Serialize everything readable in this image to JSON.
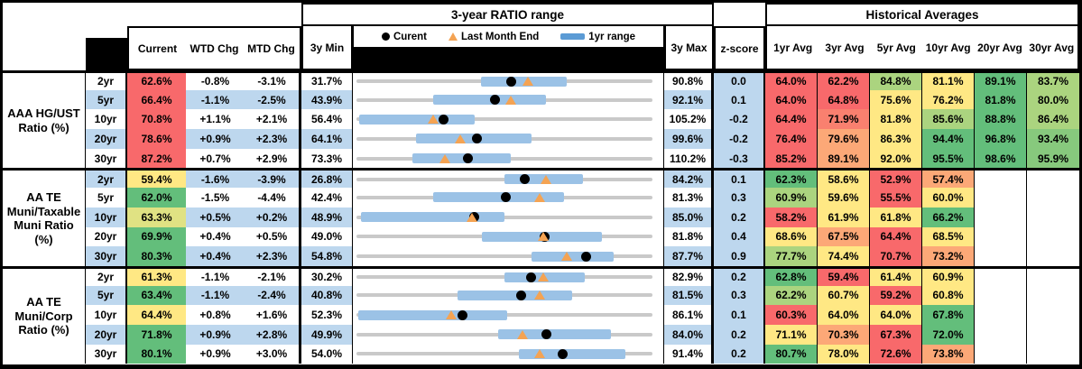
{
  "title": {
    "range": "3-year RATIO range",
    "hist": "Historical Averages"
  },
  "columns": {
    "current": "Current",
    "wtd": "WTD Chg",
    "mtd": "MTD Chg",
    "min": "3y Min",
    "max": "3y Max",
    "z": "z-score",
    "avgs": [
      "1yr Avg",
      "3yr Avg",
      "5yr Avg",
      "10yr Avg",
      "20yr Avg",
      "30yr Avg"
    ]
  },
  "legend": {
    "current": "Curent",
    "last_month": "Last Month End",
    "range": "1yr range"
  },
  "colors": {
    "band": "#BDD7EE",
    "bar": "#9BC2E6",
    "track": "#C9C9C9",
    "triangle": "#F4A353",
    "legend_bar": "#5B9BD5",
    "red": "#F8696B",
    "salmon": "#F9806F",
    "orange": "#FCA877",
    "yellow": "#FFE884",
    "yellowgreen": "#E0E283",
    "lightgreen": "#ABD47F",
    "midgreen": "#87C97D",
    "green": "#63BE7B"
  },
  "chart_data": {
    "type": "table",
    "note": "Each row shows a 3-year ratio range chart; bar/tri/dot are percent positions within [3y Min, 3y Max]; bar = 1yr range, tri = last month end, dot = current.",
    "groups": [
      {
        "label": "AAA HG/UST Ratio (%)",
        "rows": [
          {
            "tenor": "2yr",
            "current": "62.6%",
            "cur_c": "red",
            "wtd": "-0.8%",
            "mtd": "-3.1%",
            "min": "31.7%",
            "max": "90.8%",
            "z": "0.0",
            "bar": [
              42,
              71
            ],
            "tri": 58,
            "dot": 52.3,
            "avgs": [
              [
                "64.0%",
                "red"
              ],
              [
                "62.2%",
                "red"
              ],
              [
                "84.8%",
                "lightgreen"
              ],
              [
                "81.1%",
                "yellow"
              ],
              [
                "89.1%",
                "green"
              ],
              [
                "83.7%",
                "lightgreen"
              ]
            ]
          },
          {
            "tenor": "5yr",
            "current": "66.4%",
            "cur_c": "red",
            "wtd": "-1.1%",
            "mtd": "-2.5%",
            "min": "43.9%",
            "max": "92.1%",
            "z": "0.1",
            "bar": [
              26,
              64
            ],
            "tri": 52,
            "dot": 46.7,
            "avgs": [
              [
                "64.0%",
                "red"
              ],
              [
                "64.8%",
                "red"
              ],
              [
                "75.6%",
                "yellow"
              ],
              [
                "76.2%",
                "yellow"
              ],
              [
                "81.8%",
                "green"
              ],
              [
                "80.0%",
                "lightgreen"
              ]
            ]
          },
          {
            "tenor": "10yr",
            "current": "70.8%",
            "cur_c": "red",
            "wtd": "+1.1%",
            "mtd": "+2.1%",
            "min": "56.4%",
            "max": "105.2%",
            "z": "-0.2",
            "bar": [
              1,
              40
            ],
            "tri": 26,
            "dot": 29.5,
            "avgs": [
              [
                "64.4%",
                "red"
              ],
              [
                "71.9%",
                "salmon"
              ],
              [
                "81.8%",
                "yellow"
              ],
              [
                "85.6%",
                "lightgreen"
              ],
              [
                "88.8%",
                "green"
              ],
              [
                "86.4%",
                "lightgreen"
              ]
            ]
          },
          {
            "tenor": "20yr",
            "current": "78.6%",
            "cur_c": "red",
            "wtd": "+0.9%",
            "mtd": "+2.3%",
            "min": "64.1%",
            "max": "99.6%",
            "z": "-0.2",
            "bar": [
              20,
              59
            ],
            "tri": 35,
            "dot": 40.8,
            "avgs": [
              [
                "76.4%",
                "red"
              ],
              [
                "79.6%",
                "orange"
              ],
              [
                "86.3%",
                "yellow"
              ],
              [
                "94.4%",
                "green"
              ],
              [
                "96.8%",
                "green"
              ],
              [
                "93.4%",
                "midgreen"
              ]
            ]
          },
          {
            "tenor": "30yr",
            "current": "87.2%",
            "cur_c": "red",
            "wtd": "+0.7%",
            "mtd": "+2.9%",
            "min": "73.3%",
            "max": "110.2%",
            "z": "-0.3",
            "bar": [
              19,
              52
            ],
            "tri": 30,
            "dot": 37.7,
            "avgs": [
              [
                "85.2%",
                "red"
              ],
              [
                "89.1%",
                "orange"
              ],
              [
                "92.0%",
                "yellow"
              ],
              [
                "95.5%",
                "green"
              ],
              [
                "98.6%",
                "green"
              ],
              [
                "95.9%",
                "midgreen"
              ]
            ]
          }
        ]
      },
      {
        "label": "AA TE Muni/Taxable Muni Ratio (%)",
        "rows": [
          {
            "tenor": "2yr",
            "current": "59.4%",
            "cur_c": "yellow",
            "wtd": "-1.6%",
            "mtd": "-3.9%",
            "min": "26.8%",
            "max": "84.2%",
            "z": "0.1",
            "bar": [
              50,
              76.5
            ],
            "tri": 64,
            "dot": 56.8,
            "avgs": [
              [
                "62.3%",
                "green"
              ],
              [
                "58.6%",
                "yellow"
              ],
              [
                "52.9%",
                "red"
              ],
              [
                "57.4%",
                "orange"
              ],
              [
                "",
                ""
              ],
              [
                "",
                ""
              ]
            ]
          },
          {
            "tenor": "5yr",
            "current": "62.0%",
            "cur_c": "green",
            "wtd": "-1.5%",
            "mtd": "-4.4%",
            "min": "42.4%",
            "max": "81.3%",
            "z": "0.3",
            "bar": [
              26,
              70
            ],
            "tri": 62,
            "dot": 50.4,
            "avgs": [
              [
                "60.9%",
                "lightgreen"
              ],
              [
                "59.6%",
                "yellow"
              ],
              [
                "55.5%",
                "red"
              ],
              [
                "60.0%",
                "yellow"
              ],
              [
                "",
                ""
              ],
              [
                "",
                ""
              ]
            ]
          },
          {
            "tenor": "10yr",
            "current": "63.3%",
            "cur_c": "yellowgreen",
            "wtd": "+0.5%",
            "mtd": "+0.2%",
            "min": "48.9%",
            "max": "85.0%",
            "z": "0.2",
            "bar": [
              1.5,
              50
            ],
            "tri": 39,
            "dot": 39.9,
            "avgs": [
              [
                "58.2%",
                "red"
              ],
              [
                "61.9%",
                "yellow"
              ],
              [
                "61.8%",
                "yellow"
              ],
              [
                "66.2%",
                "green"
              ],
              [
                "",
                ""
              ],
              [
                "",
                ""
              ]
            ]
          },
          {
            "tenor": "20yr",
            "current": "69.9%",
            "cur_c": "green",
            "wtd": "+0.4%",
            "mtd": "+0.5%",
            "min": "49.0%",
            "max": "81.8%",
            "z": "0.4",
            "bar": [
              42.5,
              83
            ],
            "tri": 63,
            "dot": 63.7,
            "avgs": [
              [
                "68.6%",
                "yellow"
              ],
              [
                "67.5%",
                "orange"
              ],
              [
                "64.4%",
                "red"
              ],
              [
                "68.5%",
                "yellow"
              ],
              [
                "",
                ""
              ],
              [
                "",
                ""
              ]
            ]
          },
          {
            "tenor": "30yr",
            "current": "80.3%",
            "cur_c": "green",
            "wtd": "+0.4%",
            "mtd": "+2.3%",
            "min": "54.8%",
            "max": "87.7%",
            "z": "0.9",
            "bar": [
              59,
              87
            ],
            "tri": 71,
            "dot": 77.5,
            "avgs": [
              [
                "77.7%",
                "lightgreen"
              ],
              [
                "74.4%",
                "yellow"
              ],
              [
                "70.7%",
                "red"
              ],
              [
                "73.2%",
                "orange"
              ],
              [
                "",
                ""
              ],
              [
                "",
                ""
              ]
            ]
          }
        ]
      },
      {
        "label": "AA TE Muni/Corp Ratio (%)",
        "rows": [
          {
            "tenor": "2yr",
            "current": "61.3%",
            "cur_c": "yellow",
            "wtd": "-1.1%",
            "mtd": "-2.1%",
            "min": "30.2%",
            "max": "82.9%",
            "z": "0.2",
            "bar": [
              50,
              77
            ],
            "tri": 63,
            "dot": 59.0,
            "avgs": [
              [
                "62.8%",
                "green"
              ],
              [
                "59.4%",
                "red"
              ],
              [
                "61.4%",
                "yellow"
              ],
              [
                "60.9%",
                "yellow"
              ],
              [
                "",
                ""
              ],
              [
                "",
                ""
              ]
            ]
          },
          {
            "tenor": "5yr",
            "current": "63.4%",
            "cur_c": "green",
            "wtd": "-1.1%",
            "mtd": "-2.4%",
            "min": "40.8%",
            "max": "81.5%",
            "z": "0.3",
            "bar": [
              34,
              73
            ],
            "tri": 62,
            "dot": 55.5,
            "avgs": [
              [
                "62.2%",
                "lightgreen"
              ],
              [
                "60.7%",
                "yellow"
              ],
              [
                "59.2%",
                "red"
              ],
              [
                "60.8%",
                "yellow"
              ],
              [
                "",
                ""
              ],
              [
                "",
                ""
              ]
            ]
          },
          {
            "tenor": "10yr",
            "current": "64.4%",
            "cur_c": "yellow",
            "wtd": "+0.8%",
            "mtd": "+1.6%",
            "min": "52.3%",
            "max": "86.1%",
            "z": "0.1",
            "bar": [
              0.6,
              51
            ],
            "tri": 32,
            "dot": 35.8,
            "avgs": [
              [
                "60.3%",
                "red"
              ],
              [
                "64.0%",
                "yellow"
              ],
              [
                "64.0%",
                "yellow"
              ],
              [
                "67.8%",
                "green"
              ],
              [
                "",
                ""
              ],
              [
                "",
                ""
              ]
            ]
          },
          {
            "tenor": "20yr",
            "current": "71.8%",
            "cur_c": "green",
            "wtd": "+0.9%",
            "mtd": "+2.8%",
            "min": "49.9%",
            "max": "84.0%",
            "z": "0.2",
            "bar": [
              48,
              86
            ],
            "tri": 56,
            "dot": 64.2,
            "avgs": [
              [
                "71.1%",
                "yellow"
              ],
              [
                "70.3%",
                "orange"
              ],
              [
                "67.3%",
                "red"
              ],
              [
                "72.0%",
                "green"
              ],
              [
                "",
                ""
              ],
              [
                "",
                ""
              ]
            ]
          },
          {
            "tenor": "30yr",
            "current": "80.1%",
            "cur_c": "green",
            "wtd": "+0.9%",
            "mtd": "+3.0%",
            "min": "54.0%",
            "max": "91.4%",
            "z": "0.2",
            "bar": [
              55,
              91
            ],
            "tri": 62,
            "dot": 69.8,
            "avgs": [
              [
                "80.7%",
                "green"
              ],
              [
                "78.0%",
                "yellow"
              ],
              [
                "72.6%",
                "red"
              ],
              [
                "73.8%",
                "orange"
              ],
              [
                "",
                ""
              ],
              [
                "",
                ""
              ]
            ]
          }
        ]
      }
    ]
  }
}
